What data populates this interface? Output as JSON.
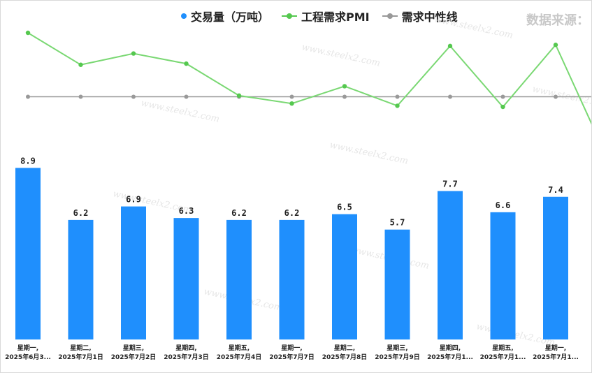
{
  "legend": {
    "volume": "交易量（万吨）",
    "pmi": "工程需求PMI",
    "median": "需求中性线"
  },
  "source_label": "数据来源：",
  "watermark": "www.steelx2.com",
  "colors": {
    "bar": "#1f8ffd",
    "pmi": "#7ad873",
    "pmi_dot": "#55c84f",
    "median": "#999999"
  },
  "chart_data": {
    "type": "bar",
    "categories": [
      {
        "day": "星期一,",
        "date": "2025年6月3..."
      },
      {
        "day": "星期二,",
        "date": "2025年7月1日"
      },
      {
        "day": "星期三,",
        "date": "2025年7月2日"
      },
      {
        "day": "星期四,",
        "date": "2025年7月3日"
      },
      {
        "day": "星期五,",
        "date": "2025年7月4日"
      },
      {
        "day": "星期一,",
        "date": "2025年7月7日"
      },
      {
        "day": "星期二,",
        "date": "2025年7月8日"
      },
      {
        "day": "星期三,",
        "date": "2025年7月9日"
      },
      {
        "day": "星期四,",
        "date": "2025年7月1..."
      },
      {
        "day": "星期五,",
        "date": "2025年7月1..."
      },
      {
        "day": "星期一,",
        "date": "2025年7月1..."
      }
    ],
    "series": [
      {
        "name": "交易量（万吨）",
        "type": "bar",
        "values": [
          8.9,
          6.2,
          6.9,
          6.3,
          6.2,
          6.2,
          6.5,
          5.7,
          7.7,
          6.6,
          7.4
        ]
      },
      {
        "name": "工程需求PMI",
        "type": "line",
        "values": [
          67,
          58.5,
          61.5,
          58.8,
          50.3,
          48.2,
          52.8,
          47.6,
          63.5,
          47.3,
          63.8
        ]
      },
      {
        "name": "需求中性线",
        "type": "line",
        "values": [
          50,
          50,
          50,
          50,
          50,
          50,
          50,
          50,
          50,
          50,
          50
        ]
      }
    ],
    "pmi_next_value": 33,
    "volume_axis_max": 11,
    "pmi_axis": [
      25,
      75
    ],
    "grid": false
  }
}
